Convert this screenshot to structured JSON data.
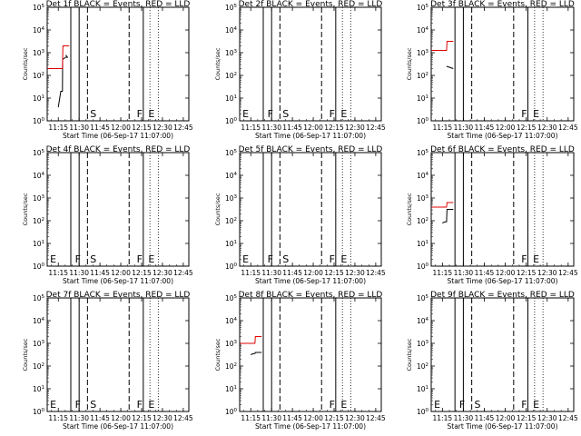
{
  "chart_data": [
    {
      "type": "line",
      "title": "Det 1f BLACK = Events, RED = LLD",
      "xlabel": "Start Time (06-Sep-17 11:07:00)",
      "ylabel": "Counts/sec",
      "x_ticks": [
        "11:15",
        "11:30",
        "11:45",
        "12:00",
        "12:15",
        "12:30",
        "12:45"
      ],
      "xlim": [
        "11:07",
        "12:49"
      ],
      "ylim_exp": [
        0,
        5
      ],
      "y_scale": "log",
      "markers": [
        "",
        "",
        "S",
        "F",
        "E"
      ],
      "series": [
        {
          "color": "#000000",
          "points": [
            [
              11.25,
              0.6
            ],
            [
              11.28,
              1.3
            ],
            [
              11.3,
              1.3
            ],
            [
              11.302,
              2.7
            ],
            [
              11.34,
              2.8
            ],
            [
              11.36,
              2.8
            ],
            [
              11.34,
              2.9
            ]
          ]
        },
        {
          "color": "#e00000",
          "points": [
            [
              11.12,
              2.3
            ],
            [
              11.3,
              2.3
            ],
            [
              11.305,
              3.3
            ],
            [
              11.34,
              3.3
            ],
            [
              11.38,
              3.3
            ]
          ]
        }
      ]
    },
    {
      "type": "line",
      "title": "Det 2f BLACK = Events, RED = LLD",
      "xlabel": "Start Time (06-Sep-17 11:07:00)",
      "ylabel": "Counts/sec",
      "x_ticks": [
        "11:15",
        "11:30",
        "11:45",
        "12:00",
        "12:15",
        "12:30",
        "12:45"
      ],
      "xlim": [
        "11:07",
        "12:49"
      ],
      "ylim_exp": [
        0,
        5
      ],
      "y_scale": "log",
      "markers": [
        "E",
        "F",
        "S",
        "F",
        "E"
      ],
      "series": []
    },
    {
      "type": "line",
      "title": "Det 3f BLACK = Events, RED = LLD",
      "xlabel": "Start Time (06-Sep-17 11:07:00)",
      "ylabel": "Counts/sec",
      "x_ticks": [
        "11:15",
        "11:30",
        "11:45",
        "12:00",
        "12:15",
        "12:30",
        "12:45"
      ],
      "xlim": [
        "11:07",
        "12:49"
      ],
      "ylim_exp": [
        0,
        5
      ],
      "y_scale": "log",
      "markers": [
        "",
        "",
        "",
        "F",
        "E"
      ],
      "series": [
        {
          "color": "#000000",
          "points": [
            [
              11.3,
              2.4
            ],
            [
              11.38,
              2.3
            ]
          ]
        },
        {
          "color": "#e00000",
          "points": [
            [
              11.12,
              3.1
            ],
            [
              11.3,
              3.1
            ],
            [
              11.305,
              3.5
            ],
            [
              11.38,
              3.5
            ]
          ]
        }
      ]
    },
    {
      "type": "line",
      "title": "Det 4f BLACK = Events, RED = LLD",
      "xlabel": "Start Time (06-Sep-17 11:07:00)",
      "ylabel": "Counts/sec",
      "x_ticks": [
        "11:15",
        "11:30",
        "11:45",
        "12:00",
        "12:15",
        "12:30",
        "12:45"
      ],
      "xlim": [
        "11:07",
        "12:49"
      ],
      "ylim_exp": [
        0,
        5
      ],
      "y_scale": "log",
      "markers": [
        "E",
        "F",
        "S",
        "F",
        "E"
      ],
      "series": []
    },
    {
      "type": "line",
      "title": "Det 5f BLACK = Events, RED = LLD",
      "xlabel": "Start Time (06-Sep-17 11:07:00)",
      "ylabel": "Counts/sec",
      "x_ticks": [
        "11:15",
        "11:30",
        "11:45",
        "12:00",
        "12:15",
        "12:30",
        "12:45"
      ],
      "xlim": [
        "11:07",
        "12:49"
      ],
      "ylim_exp": [
        0,
        5
      ],
      "y_scale": "log",
      "markers": [
        "E",
        "F",
        "S",
        "F",
        "E"
      ],
      "series": []
    },
    {
      "type": "line",
      "title": "Det 6f BLACK = Events, RED = LLD",
      "xlabel": "Start Time (06-Sep-17 11:07:00)",
      "ylabel": "Counts/sec",
      "x_ticks": [
        "11:15",
        "11:30",
        "11:45",
        "12:00",
        "12:15",
        "12:30",
        "12:45"
      ],
      "xlim": [
        "11:07",
        "12:49"
      ],
      "ylim_exp": [
        0,
        5
      ],
      "y_scale": "log",
      "markers": [
        "",
        "",
        "",
        "F",
        "E"
      ],
      "series": [
        {
          "color": "#000000",
          "points": [
            [
              11.25,
              1.9
            ],
            [
              11.28,
              1.95
            ],
            [
              11.3,
              1.95
            ],
            [
              11.305,
              2.5
            ],
            [
              11.38,
              2.5
            ]
          ]
        },
        {
          "color": "#e00000",
          "points": [
            [
              11.12,
              2.6
            ],
            [
              11.3,
              2.6
            ],
            [
              11.305,
              2.8
            ],
            [
              11.38,
              2.8
            ]
          ]
        }
      ]
    },
    {
      "type": "line",
      "title": "Det 7f BLACK = Events, RED = LLD",
      "xlabel": "Start Time (06-Sep-17 11:07:00)",
      "ylabel": "Counts/sec",
      "x_ticks": [
        "11:15",
        "11:30",
        "11:45",
        "12:00",
        "12:15",
        "12:30",
        "12:45"
      ],
      "xlim": [
        "11:07",
        "12:49"
      ],
      "ylim_exp": [
        0,
        5
      ],
      "y_scale": "log",
      "markers": [
        "E",
        "F",
        "S",
        "F",
        "E"
      ],
      "series": []
    },
    {
      "type": "line",
      "title": "Det 8f BLACK = Events, RED = LLD",
      "xlabel": "Start Time (06-Sep-17 11:07:00)",
      "ylabel": "Counts/sec",
      "x_ticks": [
        "11:15",
        "11:30",
        "11:45",
        "12:00",
        "12:15",
        "12:30",
        "12:45"
      ],
      "xlim": [
        "11:07",
        "12:49"
      ],
      "ylim_exp": [
        0,
        5
      ],
      "y_scale": "log",
      "markers": [
        "",
        "",
        "",
        "F",
        "E"
      ],
      "series": [
        {
          "color": "#000000",
          "points": [
            [
              11.25,
              2.5
            ],
            [
              11.28,
              2.55
            ],
            [
              11.3,
              2.55
            ],
            [
              11.305,
              2.6
            ],
            [
              11.38,
              2.6
            ]
          ]
        },
        {
          "color": "#e00000",
          "points": [
            [
              11.12,
              3.0
            ],
            [
              11.3,
              3.0
            ],
            [
              11.305,
              3.3
            ],
            [
              11.38,
              3.3
            ]
          ]
        }
      ]
    },
    {
      "type": "line",
      "title": "Det 9f BLACK = Events, RED = LLD",
      "xlabel": "Start Time (06-Sep-17 11:07:00)",
      "ylabel": "Counts/sec",
      "x_ticks": [
        "11:15",
        "11:30",
        "11:45",
        "12:00",
        "12:15",
        "12:30",
        "12:45"
      ],
      "xlim": [
        "11:07",
        "12:49"
      ],
      "ylim_exp": [
        0,
        5
      ],
      "y_scale": "log",
      "markers": [
        "E",
        "F",
        "S",
        "F",
        "E"
      ],
      "series": []
    }
  ]
}
